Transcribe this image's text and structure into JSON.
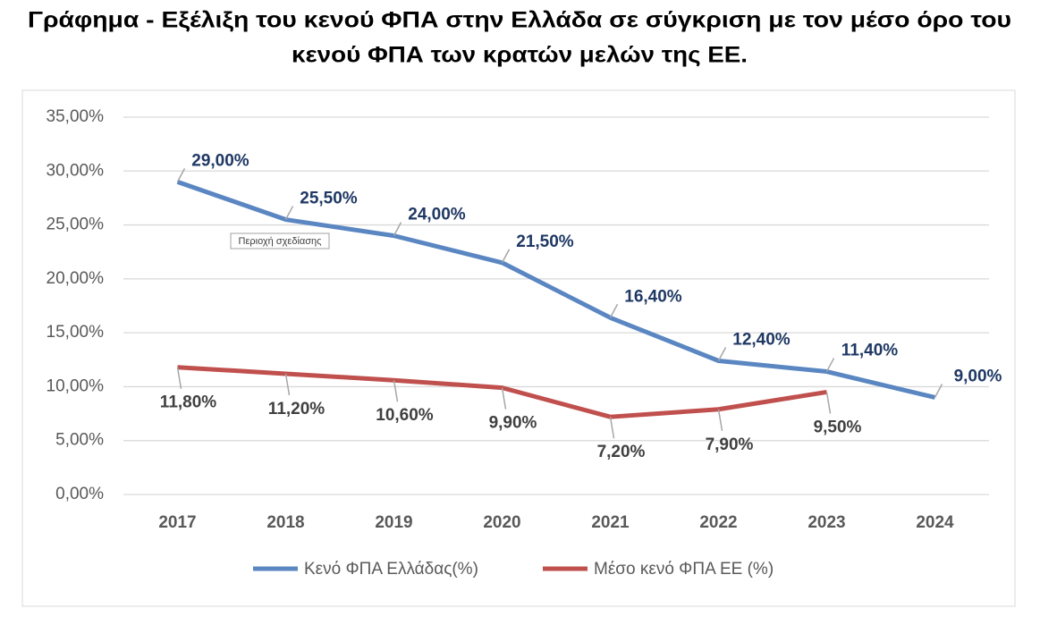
{
  "chart_data": {
    "type": "line",
    "title": [
      "Γράφημα - Εξέλιξη του κενού ΦΠΑ στην Ελλάδα σε σύγκριση με τον μέσο όρο του",
      "κενού ΦΠΑ των κρατών μελών της ΕΕ."
    ],
    "categories": [
      "2017",
      "2018",
      "2019",
      "2020",
      "2021",
      "2022",
      "2023",
      "2024"
    ],
    "series": [
      {
        "name": "Κενό ΦΠΑ Ελλάδας(%)",
        "color": "#5a86c2",
        "label_color": "#1f3864",
        "values": [
          29,
          25.5,
          24,
          21.5,
          16.4,
          12.4,
          11.4,
          9
        ],
        "value_labels": [
          "29,00%",
          "25,50%",
          "24,00%",
          "21,50%",
          "16,40%",
          "12,40%",
          "11,40%",
          "9,00%"
        ]
      },
      {
        "name": "Μέσο κενό ΦΠΑ ΕΕ (%)",
        "color": "#c0504d",
        "label_color": "#404040",
        "values": [
          11.8,
          11.2,
          10.6,
          9.9,
          7.2,
          7.9,
          9.5,
          null
        ],
        "value_labels": [
          "11,80%",
          "11,20%",
          "10,60%",
          "9,90%",
          "7,20%",
          "7,90%",
          "9,50%",
          null
        ]
      }
    ],
    "ylim": [
      0,
      35
    ],
    "yticks": [
      {
        "value": 0,
        "label": "0,00%"
      },
      {
        "value": 5,
        "label": "5,00%"
      },
      {
        "value": 10,
        "label": "10,00%"
      },
      {
        "value": 15,
        "label": "15,00%"
      },
      {
        "value": 20,
        "label": "20,00%"
      },
      {
        "value": 25,
        "label": "25,00%"
      },
      {
        "value": 30,
        "label": "30,00%"
      },
      {
        "value": 35,
        "label": "35,00%"
      }
    ],
    "grid": true,
    "legend": "bottom",
    "tooltip": "Περιοχή σχεδίασης"
  }
}
